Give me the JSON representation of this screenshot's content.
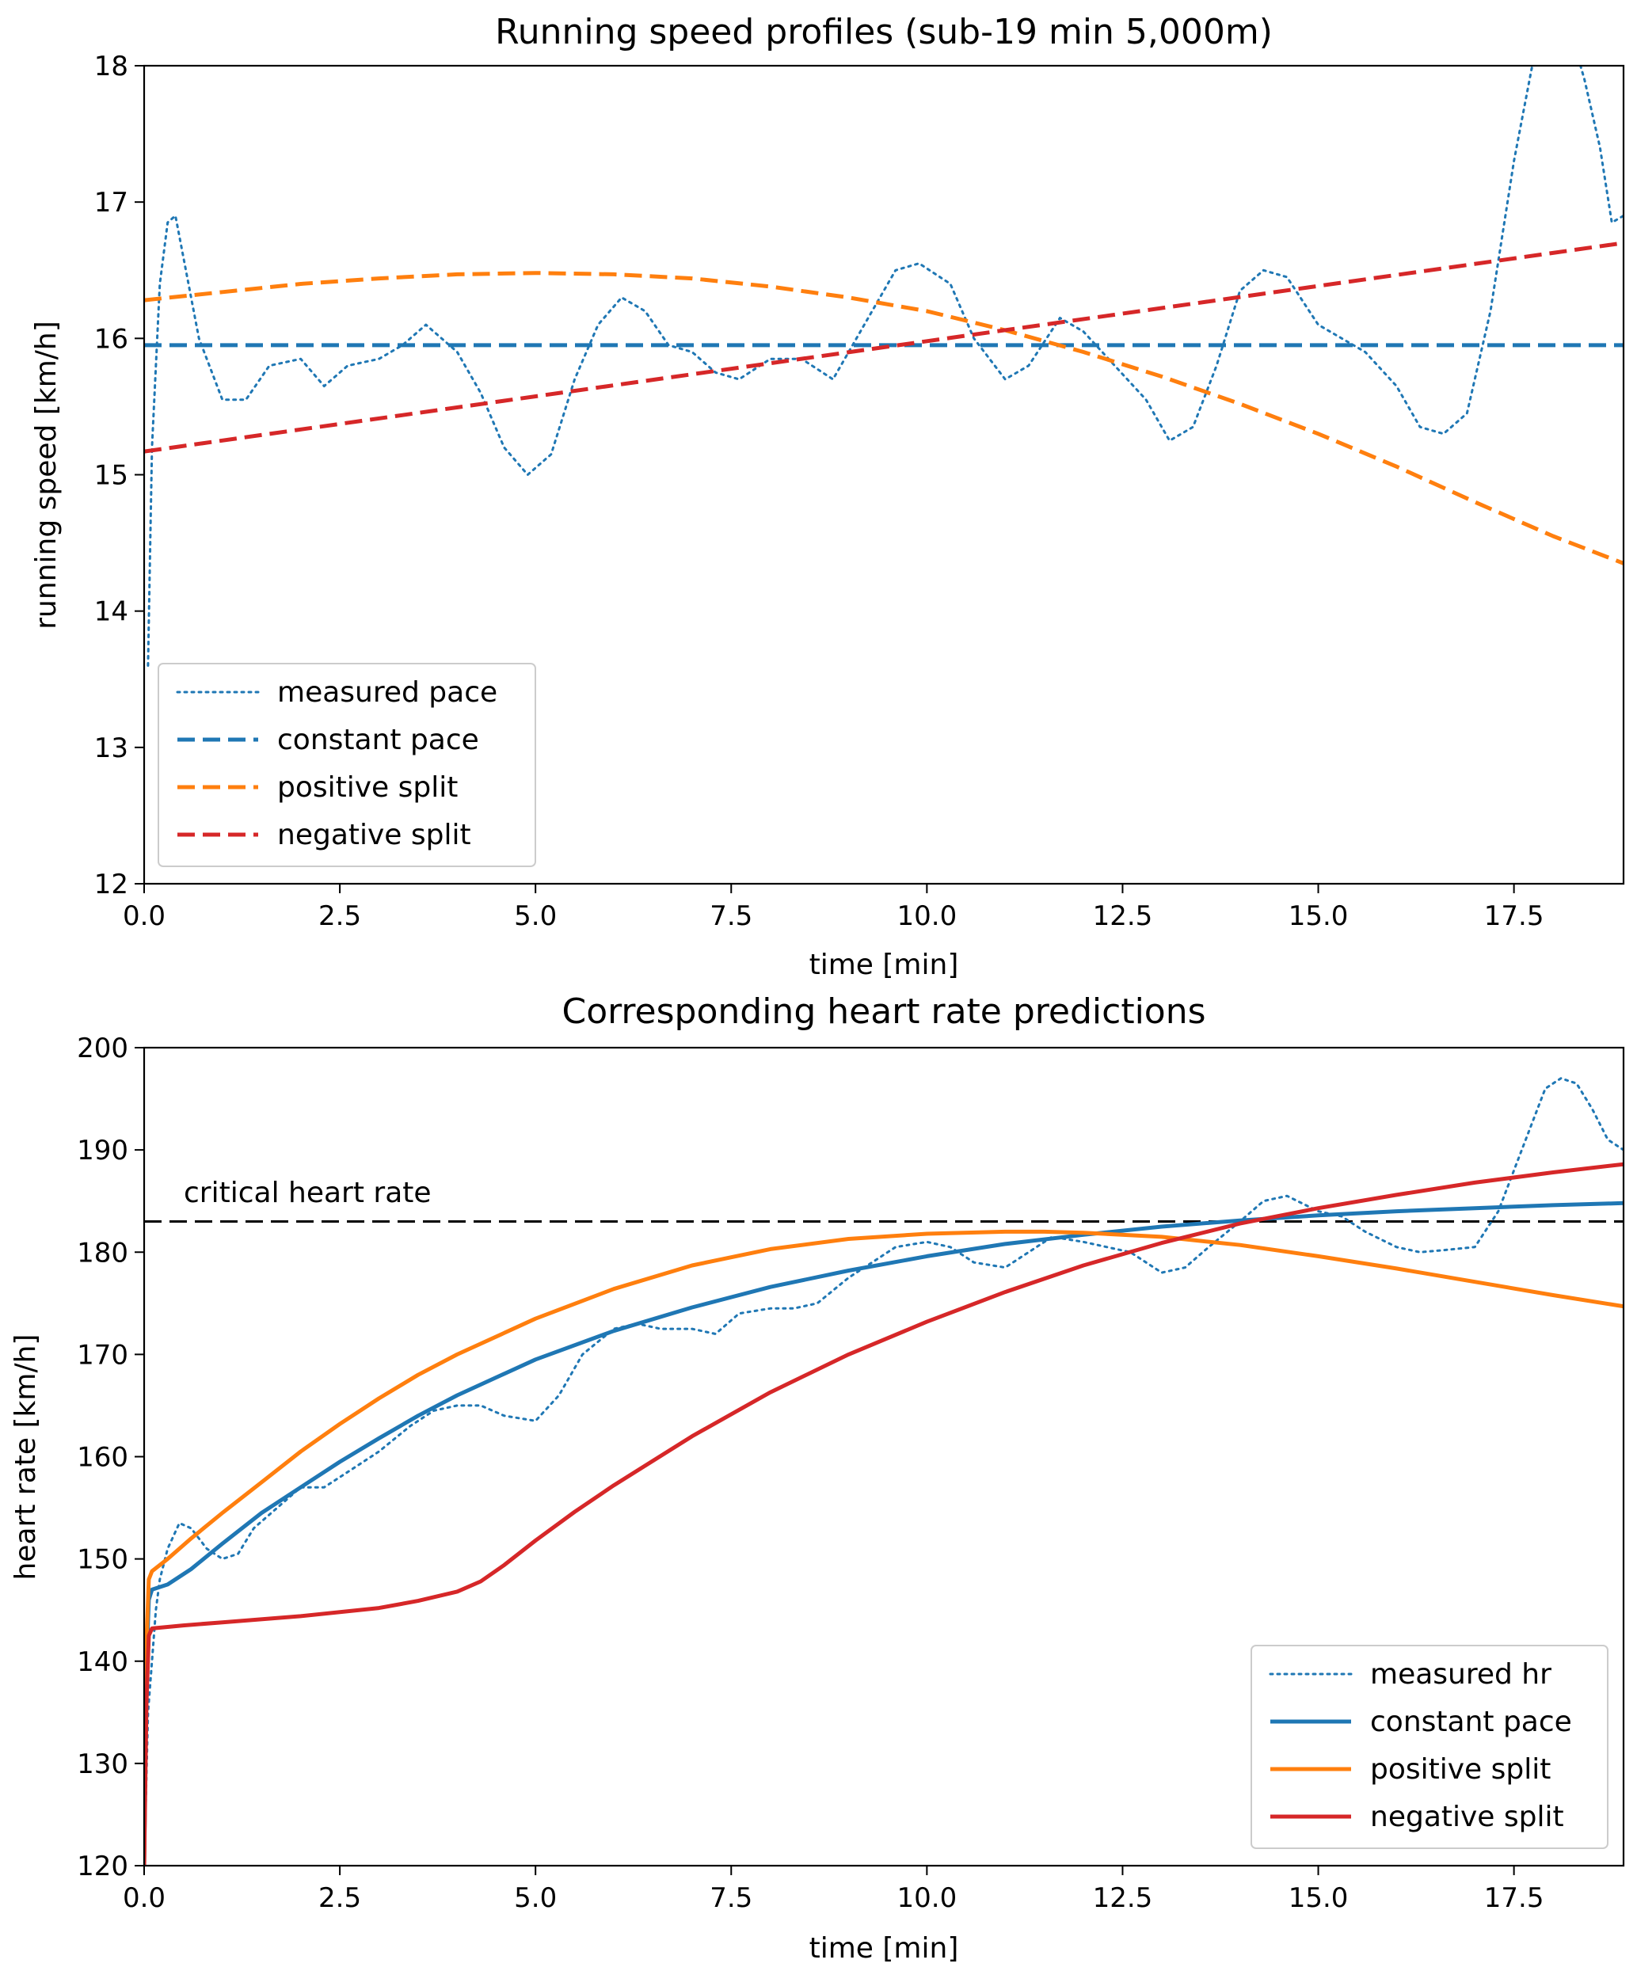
{
  "chart_data": [
    {
      "type": "line",
      "title": "Running speed profiles (sub-19 min 5,000m)",
      "xlabel": "time [min]",
      "ylabel": "running speed [km/h]",
      "xlim": [
        0,
        18.9
      ],
      "ylim": [
        12,
        18
      ],
      "xticks": [
        "0.0",
        "2.5",
        "5.0",
        "7.5",
        "10.0",
        "12.5",
        "15.0",
        "17.5"
      ],
      "yticks": [
        "12",
        "13",
        "14",
        "15",
        "16",
        "17",
        "18"
      ],
      "legend_position": "lower-left",
      "grid": false,
      "series": [
        {
          "name": "measured pace",
          "color": "#1f77b4",
          "style": "dotted",
          "x": [
            0.05,
            0.1,
            0.2,
            0.3,
            0.4,
            0.5,
            0.7,
            1.0,
            1.3,
            1.6,
            2.0,
            2.3,
            2.6,
            3.0,
            3.3,
            3.6,
            4.0,
            4.3,
            4.6,
            4.9,
            5.2,
            5.5,
            5.8,
            6.1,
            6.4,
            6.7,
            7.0,
            7.3,
            7.6,
            8.0,
            8.4,
            8.8,
            9.2,
            9.6,
            9.9,
            10.3,
            10.6,
            11.0,
            11.3,
            11.7,
            12.0,
            12.4,
            12.8,
            13.1,
            13.4,
            13.7,
            14.0,
            14.3,
            14.6,
            15.0,
            15.3,
            15.6,
            16.0,
            16.3,
            16.6,
            16.9,
            17.2,
            17.5,
            17.8,
            18.0,
            18.2,
            18.4,
            18.6,
            18.75,
            18.9
          ],
          "y": [
            13.6,
            15.2,
            16.4,
            16.85,
            16.9,
            16.6,
            16.0,
            15.55,
            15.55,
            15.8,
            15.85,
            15.65,
            15.8,
            15.85,
            15.95,
            16.1,
            15.9,
            15.6,
            15.2,
            15.0,
            15.15,
            15.7,
            16.1,
            16.3,
            16.2,
            15.95,
            15.9,
            15.75,
            15.7,
            15.85,
            15.85,
            15.7,
            16.1,
            16.5,
            16.55,
            16.4,
            16.0,
            15.7,
            15.8,
            16.15,
            16.05,
            15.8,
            15.55,
            15.25,
            15.35,
            15.8,
            16.35,
            16.5,
            16.45,
            16.1,
            16.0,
            15.9,
            15.65,
            15.35,
            15.3,
            15.45,
            16.2,
            17.3,
            18.2,
            18.5,
            18.3,
            17.9,
            17.4,
            16.85,
            16.9
          ]
        },
        {
          "name": "constant pace",
          "color": "#1f77b4",
          "style": "dashed",
          "x": [
            0,
            18.9
          ],
          "y": [
            15.95,
            15.95
          ]
        },
        {
          "name": "positive split",
          "color": "#ff7f0e",
          "style": "dashed",
          "x": [
            0,
            1,
            2,
            3,
            4,
            5,
            6,
            7,
            8,
            9,
            10,
            11,
            12,
            13,
            14,
            15,
            16,
            17,
            18,
            18.9
          ],
          "y": [
            16.28,
            16.34,
            16.4,
            16.44,
            16.47,
            16.48,
            16.47,
            16.44,
            16.38,
            16.3,
            16.2,
            16.06,
            15.9,
            15.72,
            15.52,
            15.3,
            15.06,
            14.8,
            14.55,
            14.35
          ]
        },
        {
          "name": "negative split",
          "color": "#d62728",
          "style": "dashed",
          "x": [
            0,
            18.9
          ],
          "y": [
            15.17,
            16.7
          ]
        }
      ]
    },
    {
      "type": "line",
      "title": "Corresponding heart rate predictions",
      "xlabel": "time [min]",
      "ylabel": "heart rate [km/h]",
      "xlim": [
        0,
        18.9
      ],
      "ylim": [
        120,
        200
      ],
      "xticks": [
        "0.0",
        "2.5",
        "5.0",
        "7.5",
        "10.0",
        "12.5",
        "15.0",
        "17.5"
      ],
      "yticks": [
        "120",
        "130",
        "140",
        "150",
        "160",
        "170",
        "180",
        "190",
        "200"
      ],
      "legend_position": "lower-right",
      "grid": false,
      "annotations": [
        {
          "text": "critical heart rate",
          "x": 0.5,
          "y": 183
        }
      ],
      "reference_lines": [
        {
          "orientation": "horizontal",
          "y": 183,
          "color": "#000000",
          "style": "dashed"
        }
      ],
      "series": [
        {
          "name": "measured hr",
          "color": "#1f77b4",
          "style": "dotted",
          "x": [
            0.0,
            0.05,
            0.1,
            0.15,
            0.2,
            0.3,
            0.45,
            0.6,
            0.8,
            1.0,
            1.2,
            1.4,
            1.7,
            2.0,
            2.3,
            2.6,
            3.0,
            3.4,
            3.7,
            4.0,
            4.3,
            4.6,
            5.0,
            5.3,
            5.6,
            6.0,
            6.3,
            6.6,
            7.0,
            7.3,
            7.6,
            8.0,
            8.3,
            8.6,
            9.0,
            9.3,
            9.6,
            10.0,
            10.3,
            10.6,
            11.0,
            11.3,
            11.6,
            12.0,
            12.3,
            12.6,
            13.0,
            13.3,
            13.6,
            14.0,
            14.3,
            14.6,
            15.0,
            15.3,
            15.6,
            16.0,
            16.3,
            16.6,
            17.0,
            17.3,
            17.5,
            17.7,
            17.9,
            18.1,
            18.3,
            18.5,
            18.7,
            18.9
          ],
          "y": [
            120,
            135,
            140,
            145,
            148,
            151,
            153.5,
            153,
            151,
            150,
            150.5,
            153,
            155,
            157,
            157,
            158.5,
            160.5,
            163,
            164.5,
            165,
            165,
            164,
            163.5,
            166,
            170,
            172.5,
            173,
            172.5,
            172.5,
            172,
            174,
            174.5,
            174.5,
            175,
            177.5,
            179,
            180.5,
            181,
            180.5,
            179,
            178.5,
            180,
            181.5,
            181,
            180.5,
            180,
            178,
            178.5,
            180.5,
            183,
            185,
            185.5,
            184,
            183.5,
            182,
            180.5,
            180,
            180.2,
            180.5,
            184,
            188,
            192,
            196,
            197,
            196.5,
            194,
            191,
            190
          ]
        },
        {
          "name": "constant pace",
          "color": "#1f77b4",
          "style": "solid",
          "x": [
            0,
            0.03,
            0.06,
            0.1,
            0.3,
            0.6,
            1.0,
            1.5,
            2.0,
            2.5,
            3.0,
            3.5,
            4.0,
            5.0,
            6.0,
            7.0,
            8.0,
            9.0,
            10.0,
            11.0,
            12.0,
            13.0,
            14.0,
            15.0,
            16.0,
            17.0,
            18.0,
            18.9
          ],
          "y": [
            120,
            140,
            146,
            147,
            147.5,
            149,
            151.5,
            154.5,
            157,
            159.5,
            161.8,
            164,
            166,
            169.5,
            172.3,
            174.6,
            176.6,
            178.2,
            179.6,
            180.8,
            181.7,
            182.5,
            183.1,
            183.6,
            184,
            184.3,
            184.6,
            184.8
          ]
        },
        {
          "name": "positive split",
          "color": "#ff7f0e",
          "style": "solid",
          "x": [
            0,
            0.03,
            0.06,
            0.1,
            0.3,
            0.6,
            1.0,
            1.5,
            2.0,
            2.5,
            3.0,
            3.5,
            4.0,
            5.0,
            6.0,
            7.0,
            8.0,
            9.0,
            10.0,
            11.0,
            11.5,
            12.0,
            13.0,
            14.0,
            15.0,
            16.0,
            17.0,
            18.0,
            18.9
          ],
          "y": [
            120,
            142,
            148,
            148.8,
            150,
            152,
            154.5,
            157.5,
            160.5,
            163.2,
            165.7,
            168,
            170,
            173.5,
            176.4,
            178.7,
            180.3,
            181.3,
            181.8,
            182,
            182,
            181.9,
            181.5,
            180.7,
            179.6,
            178.4,
            177.1,
            175.8,
            174.7
          ]
        },
        {
          "name": "negative split",
          "color": "#d62728",
          "style": "solid",
          "x": [
            0,
            0.03,
            0.06,
            0.1,
            0.5,
            1.0,
            2.0,
            3.0,
            3.5,
            4.0,
            4.3,
            4.6,
            5.0,
            5.5,
            6.0,
            6.5,
            7.0,
            8.0,
            9.0,
            10.0,
            11.0,
            12.0,
            13.0,
            14.0,
            15.0,
            16.0,
            17.0,
            18.0,
            18.9
          ],
          "y": [
            120,
            136,
            142.5,
            143.2,
            143.5,
            143.8,
            144.4,
            145.2,
            145.9,
            146.8,
            147.8,
            149.4,
            151.8,
            154.6,
            157.2,
            159.6,
            162,
            166.3,
            170,
            173.2,
            176.1,
            178.7,
            180.9,
            182.8,
            184.3,
            185.6,
            186.8,
            187.8,
            188.6
          ]
        }
      ]
    }
  ]
}
